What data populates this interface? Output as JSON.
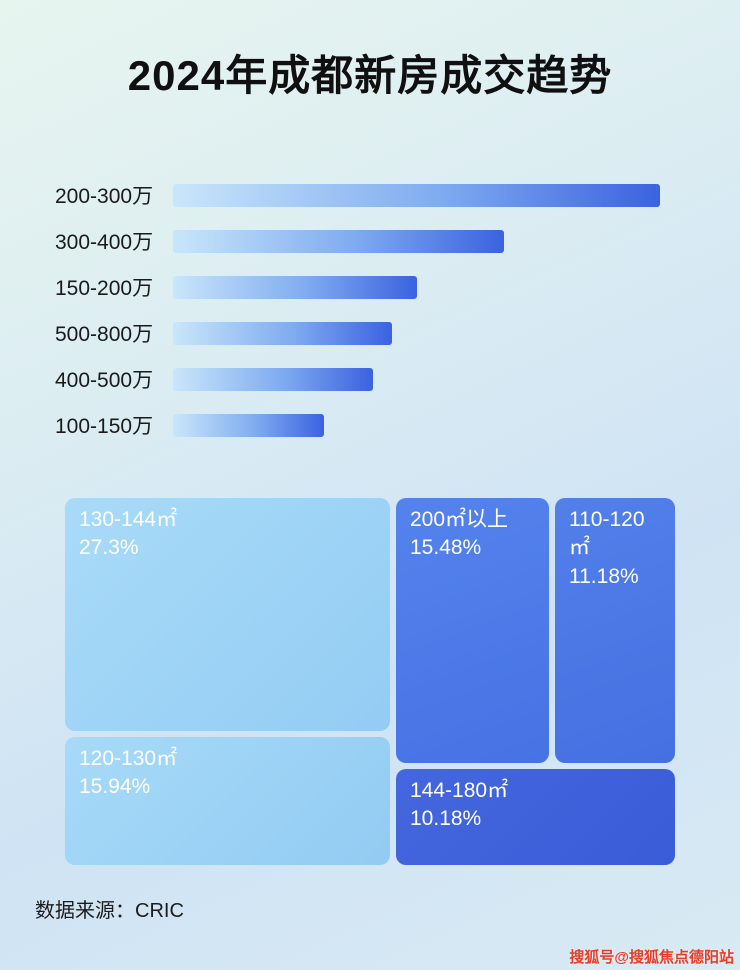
{
  "page": {
    "title": "2024年成都新房成交趋势",
    "footer": "数据来源：CRIC",
    "watermark": "搜狐号@搜狐焦点德阳站"
  },
  "chart_data": [
    {
      "type": "bar",
      "orientation": "horizontal",
      "title": "2024年成都新房成交趋势",
      "categories": [
        "200-300万",
        "300-400万",
        "150-200万",
        "500-800万",
        "400-500万",
        "100-150万"
      ],
      "values": [
        100,
        68,
        50,
        45,
        41,
        31
      ],
      "value_note": "no numeric axis shown; values are relative bar lengths (% of longest bar)",
      "bar_gradient": [
        "#c9e6fa",
        "#3b62e0"
      ],
      "grid": false,
      "legend": false
    },
    {
      "type": "treemap",
      "items": [
        {
          "label": "130-144㎡",
          "percent": "27.3%",
          "value": 27.3,
          "color": "#9ed2f5"
        },
        {
          "label": "120-130㎡",
          "percent": "15.94%",
          "value": 15.94,
          "color": "#9ed2f5"
        },
        {
          "label": "200㎡以上",
          "percent": "15.48%",
          "value": 15.48,
          "color": "#4c7ae9"
        },
        {
          "label": "110-120㎡",
          "percent": "11.18%",
          "value": 11.18,
          "color": "#4a74e4"
        },
        {
          "label": "144-180㎡",
          "percent": "10.18%",
          "value": 10.18,
          "color": "#3e61db"
        }
      ]
    }
  ]
}
